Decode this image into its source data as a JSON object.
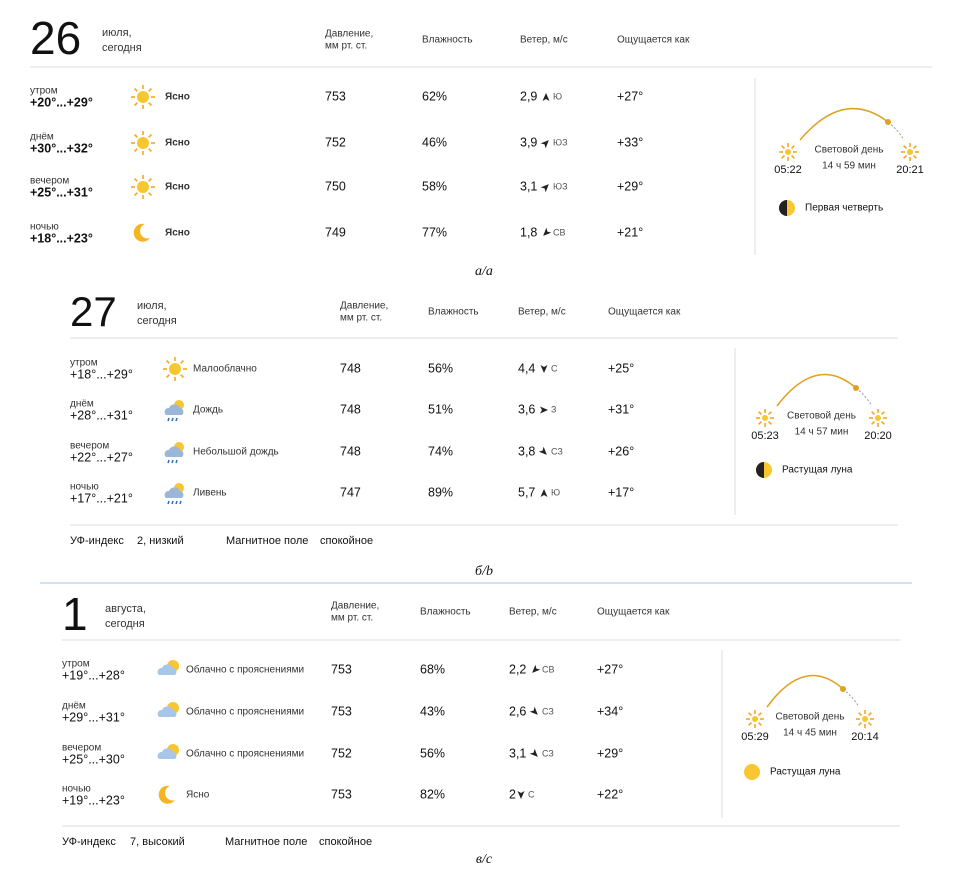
{
  "panels": [
    {
      "day": "26",
      "month": "июля,",
      "today": "сегодня",
      "headers": {
        "pressure": [
          "Давление,",
          "мм рт. ст."
        ],
        "humidity": "Влажность",
        "wind": "Ветер, м/с",
        "feels": "Ощущается как"
      },
      "rows": [
        {
          "period": "утром",
          "temp": "+20°...+29°",
          "condition": "Ясно",
          "pressure": 753,
          "humidity": "62%",
          "wind": "2,9",
          "wind_dir": "Ю",
          "feels": "+27°"
        },
        {
          "period": "днём",
          "temp": "+30°...+32°",
          "condition": "Ясно",
          "pressure": 752,
          "humidity": "46%",
          "wind": "3,9",
          "wind_dir": "ЮЗ",
          "feels": "+33°"
        },
        {
          "period": "вечером",
          "temp": "+25°...+31°",
          "condition": "Ясно",
          "pressure": 750,
          "humidity": "58%",
          "wind": "3,1",
          "wind_dir": "ЮЗ",
          "feels": "+29°"
        },
        {
          "period": "ночью",
          "temp": "+18°...+23°",
          "condition": "Ясно",
          "pressure": 749,
          "humidity": "77%",
          "wind": "1,8",
          "wind_dir": "СВ",
          "feels": "+21°"
        }
      ],
      "sun": {
        "label": "Световой день",
        "duration": "14 ч 59 мин",
        "sunrise": "05:22",
        "sunset": "20:21"
      },
      "moon": "Первая четверть",
      "caption": "а/a"
    },
    {
      "day": "27",
      "month": "июля,",
      "today": "сегодня",
      "headers": {
        "pressure": [
          "Давление,",
          "мм рт. ст."
        ],
        "humidity": "Влажность",
        "wind": "Ветер, м/с",
        "feels": "Ощущается как"
      },
      "rows": [
        {
          "period": "утром",
          "temp": "+18°...+29°",
          "condition": "Малооблачно",
          "pressure": 748,
          "humidity": "56%",
          "wind": "4,4",
          "wind_dir": "С",
          "feels": "+25°"
        },
        {
          "period": "днём",
          "temp": "+28°...+31°",
          "condition": "Дождь",
          "pressure": 748,
          "humidity": "51%",
          "wind": "3,6",
          "wind_dir": "З",
          "feels": "+31°"
        },
        {
          "period": "вечером",
          "temp": "+22°...+27°",
          "condition": "Небольшой дождь",
          "pressure": 748,
          "humidity": "74%",
          "wind": "3,8",
          "wind_dir": "СЗ",
          "feels": "+26°"
        },
        {
          "period": "ночью",
          "temp": "+17°...+21°",
          "condition": "Ливень",
          "pressure": 747,
          "humidity": "89%",
          "wind": "5,7",
          "wind_dir": "Ю",
          "feels": "+17°"
        }
      ],
      "sun": {
        "label": "Световой день",
        "duration": "14 ч 57 мин",
        "sunrise": "05:23",
        "sunset": "20:20"
      },
      "moon": "Растущая луна",
      "footer": {
        "uv_label": "УФ-индекс",
        "uv": "2, низкий",
        "magnetic_label": "Магнитное поле",
        "magnetic": "спокойное"
      },
      "caption": "б/b"
    },
    {
      "day": "1",
      "month": "августа,",
      "today": "сегодня",
      "headers": {
        "pressure": [
          "Давление,",
          "мм рт. ст."
        ],
        "humidity": "Влажность",
        "wind": "Ветер, м/с",
        "feels": "Ощущается как"
      },
      "rows": [
        {
          "period": "утром",
          "temp": "+19°...+28°",
          "condition": "Облачно с прояснениями",
          "pressure": 753,
          "humidity": "68%",
          "wind": "2,2",
          "wind_dir": "СВ",
          "feels": "+27°"
        },
        {
          "period": "днём",
          "temp": "+29°...+31°",
          "condition": "Облачно с прояснениями",
          "pressure": 753,
          "humidity": "43%",
          "wind": "2,6",
          "wind_dir": "СЗ",
          "feels": "+34°"
        },
        {
          "period": "вечером",
          "temp": "+25°...+30°",
          "condition": "Облачно с прояснениями",
          "pressure": 752,
          "humidity": "56%",
          "wind": "3,1",
          "wind_dir": "СЗ",
          "feels": "+29°"
        },
        {
          "period": "ночью",
          "temp": "+19°...+23°",
          "condition": "Ясно",
          "pressure": 753,
          "humidity": "82%",
          "wind": "2",
          "wind_dir": "С",
          "feels": "+22°"
        }
      ],
      "sun": {
        "label": "Световой день",
        "duration": "14 ч 45 мин",
        "sunrise": "05:29",
        "sunset": "20:14"
      },
      "moon": "Растущая луна",
      "footer": {
        "uv_label": "УФ-индекс",
        "uv": "7, высокий",
        "magnetic_label": "Магнитное поле",
        "magnetic": "спокойное"
      },
      "caption": "в/c"
    }
  ]
}
